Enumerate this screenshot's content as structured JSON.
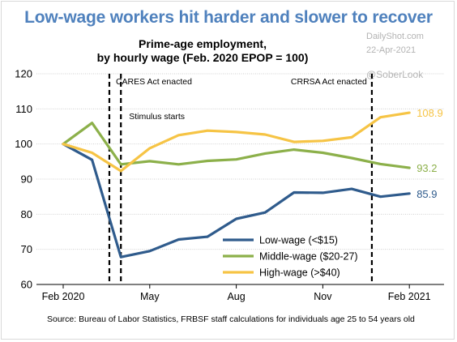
{
  "headline": "Low-wage workers hit harder and slower to recover",
  "watermark": {
    "site": "DailyShot.com",
    "date": "22-Apr-2021",
    "handle": "@SoberLook"
  },
  "source": "Source: Bureau of Labor Statistics, FRBSF staff calculations for individuals age 25 to 54 years old",
  "colors": {
    "headline": "#4f81bd",
    "low": "#2f5b8c",
    "middle": "#8cb04a",
    "high": "#f6c445",
    "grid": "#cfcfcf"
  },
  "chart_data": {
    "type": "line",
    "title": "Prime-age employment,",
    "subtitle": "by hourly wage (Feb. 2020 EPOP = 100)",
    "x": [
      "2020-02",
      "2020-03",
      "2020-04",
      "2020-05",
      "2020-06",
      "2020-07",
      "2020-08",
      "2020-09",
      "2020-10",
      "2020-11",
      "2020-12",
      "2021-01",
      "2021-02"
    ],
    "x_tick_labels": [
      "Feb 2020",
      "May",
      "Aug",
      "Nov",
      "Feb 2021"
    ],
    "ylim": [
      60,
      120
    ],
    "y_ticks": [
      60,
      70,
      80,
      90,
      100,
      110,
      120
    ],
    "grid": true,
    "legend_position": "bottom-center",
    "series": [
      {
        "name": "Low-wage (<$15)",
        "color_key": "low",
        "values": [
          100,
          95.5,
          67.8,
          69.5,
          72.8,
          73.6,
          78.7,
          80.5,
          86.2,
          86.1,
          87.2,
          85.0,
          85.9
        ],
        "end_label": "85.9"
      },
      {
        "name": "Middle-wage ($20-27)",
        "color_key": "middle",
        "values": [
          100,
          106.0,
          94.2,
          95.1,
          94.2,
          95.2,
          95.6,
          97.3,
          98.4,
          97.5,
          96.0,
          94.3,
          93.2
        ],
        "end_label": "93.2"
      },
      {
        "name": "High-wage (>$40)",
        "color_key": "high",
        "values": [
          100,
          97.5,
          92.3,
          98.8,
          102.5,
          103.8,
          103.4,
          102.7,
          100.6,
          100.9,
          101.9,
          107.6,
          108.9
        ],
        "end_label": "108.9"
      }
    ],
    "annotations": [
      {
        "text": "CARES Act enacted",
        "x_index": 1.6
      },
      {
        "text": "Stimulus starts",
        "x_index": 2.0
      },
      {
        "text": "CRRSA Act enacted",
        "x_index": 10.7
      }
    ]
  }
}
